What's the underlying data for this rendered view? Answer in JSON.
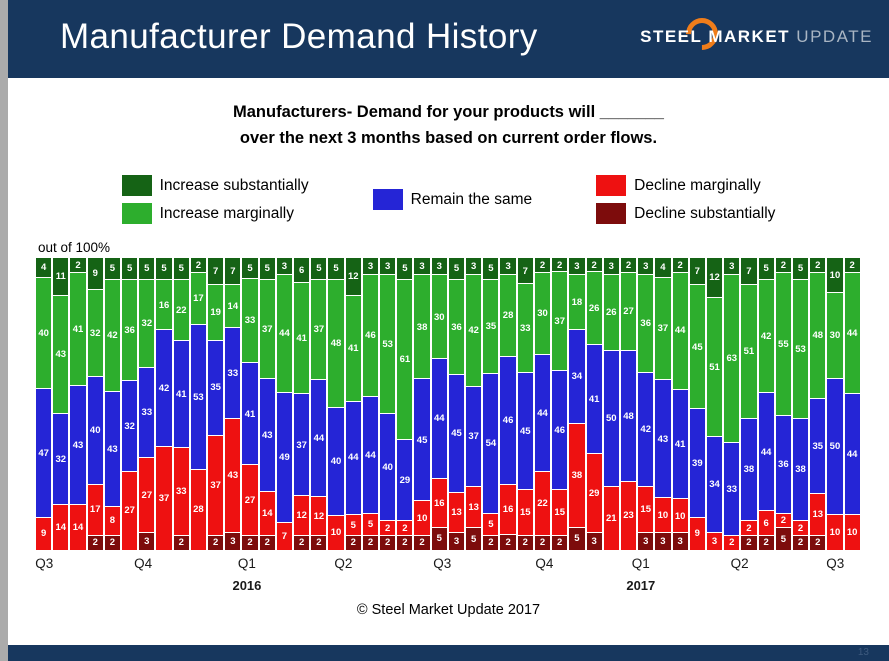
{
  "header": {
    "title": "Manufacturer Demand History",
    "logo": {
      "steel": "STEEL",
      "market": "MARKET",
      "update": "UPDATE"
    }
  },
  "subtitle": {
    "line1_bold": "Manufacturers-",
    "line1_rest": " Demand for your products will _______",
    "line2": "over the next 3 months based on current order flows."
  },
  "legend": {
    "items": [
      {
        "label": "Increase substantially",
        "color": "#156315"
      },
      {
        "label": "Increase marginally",
        "color": "#2DAE2D"
      },
      {
        "label": "Remain the same",
        "color": "#2525D6"
      },
      {
        "label": "Decline marginally",
        "color": "#EE1111"
      },
      {
        "label": "Decline substantially",
        "color": "#7D0C0C"
      }
    ]
  },
  "axis_note": "out of 100%",
  "footer": {
    "copyright": "© Steel Market Update 2017",
    "page_number": "13"
  },
  "chart_data": {
    "type": "bar",
    "stacked": true,
    "stack_total": 100,
    "title": "Manufacturer Demand History",
    "ylabel": "out of 100%",
    "ylim": [
      0,
      100
    ],
    "grid": false,
    "legend_position": "top",
    "series_order_top_to_bottom": [
      "Increase substantially",
      "Increase marginally",
      "Remain the same",
      "Decline marginally",
      "Decline substantially"
    ],
    "series": [
      {
        "name": "Increase substantially",
        "color": "#156315",
        "values": [
          4,
          11,
          2,
          9,
          5,
          5,
          5,
          5,
          5,
          2,
          7,
          7,
          5,
          5,
          3,
          6,
          5,
          5,
          12,
          3,
          3,
          5,
          3,
          3,
          5,
          3,
          5,
          3,
          7,
          2,
          2,
          3,
          2,
          3,
          2,
          3,
          4,
          2,
          7,
          12,
          3,
          7,
          5,
          2,
          5,
          2,
          10,
          2
        ]
      },
      {
        "name": "Increase marginally",
        "color": "#2DAE2D",
        "values": [
          40,
          43,
          41,
          32,
          42,
          36,
          32,
          16,
          22,
          17,
          19,
          14,
          33,
          37,
          44,
          41,
          37,
          48,
          41,
          46,
          53,
          61,
          38,
          30,
          36,
          42,
          35,
          28,
          33,
          30,
          37,
          18,
          26,
          26,
          27,
          36,
          37,
          44,
          45,
          51,
          63,
          51,
          42,
          55,
          53,
          48,
          30,
          44
        ]
      },
      {
        "name": "Remain the same",
        "color": "#2525D6",
        "values": [
          47,
          32,
          43,
          40,
          43,
          32,
          33,
          42,
          41,
          53,
          35,
          33,
          41,
          43,
          49,
          37,
          44,
          40,
          44,
          44,
          40,
          29,
          45,
          44,
          45,
          37,
          54,
          46,
          45,
          44,
          46,
          34,
          41,
          50,
          48,
          42,
          43,
          41,
          39,
          34,
          33,
          38,
          44,
          36,
          38,
          35,
          50,
          44
        ]
      },
      {
        "name": "Decline marginally",
        "color": "#EE1111",
        "values": [
          9,
          14,
          14,
          17,
          8,
          27,
          27,
          37,
          33,
          28,
          37,
          43,
          27,
          14,
          7,
          12,
          12,
          10,
          5,
          5,
          2,
          2,
          10,
          16,
          13,
          13,
          5,
          16,
          15,
          22,
          15,
          38,
          29,
          21,
          23,
          15,
          10,
          10,
          9,
          3,
          2,
          2,
          6,
          2,
          2,
          13,
          10,
          10
        ]
      },
      {
        "name": "Decline substantially",
        "color": "#7D0C0C",
        "values": [
          0,
          0,
          0,
          2,
          2,
          0,
          3,
          0,
          2,
          0,
          2,
          3,
          2,
          2,
          0,
          2,
          2,
          0,
          2,
          2,
          2,
          2,
          2,
          5,
          3,
          5,
          2,
          2,
          2,
          2,
          2,
          5,
          3,
          0,
          0,
          3,
          3,
          3,
          0,
          0,
          0,
          2,
          2,
          5,
          2,
          2,
          0,
          0
        ]
      }
    ],
    "x_axis": {
      "ticks": [
        {
          "label": "Q3",
          "pos": 1
        },
        {
          "label": "Q4",
          "pos": 13
        },
        {
          "label": "Q1",
          "pos": 25.6
        },
        {
          "label": "Q2",
          "pos": 37.3
        },
        {
          "label": "Q3",
          "pos": 49.3
        },
        {
          "label": "Q4",
          "pos": 61.7
        },
        {
          "label": "Q1",
          "pos": 73.4
        },
        {
          "label": "Q2",
          "pos": 85.4
        },
        {
          "label": "Q3",
          "pos": 97
        }
      ],
      "years": [
        {
          "label": "2016",
          "pos": 25.6
        },
        {
          "label": "2017",
          "pos": 73.4
        }
      ]
    }
  }
}
